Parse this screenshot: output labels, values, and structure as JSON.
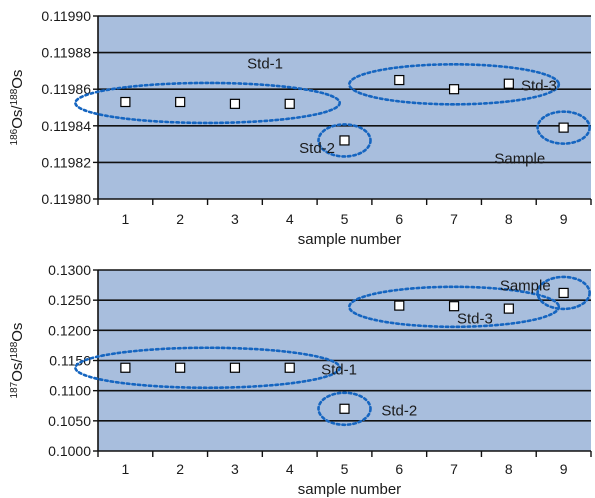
{
  "chart_data": [
    {
      "type": "scatter",
      "title": "",
      "xlabel": "sample number",
      "ylabel_parts": {
        "sup1": "186",
        "base1": "Os/",
        "sup2": "188",
        "base2": "Os"
      },
      "x": [
        1,
        2,
        3,
        4,
        5,
        6,
        7,
        8,
        9
      ],
      "xlim": [
        0.5,
        9.5
      ],
      "ylim": [
        0.1198,
        0.1199
      ],
      "yticks": [
        0.1198,
        0.11982,
        0.11984,
        0.11986,
        0.11988,
        0.1199
      ],
      "ytick_labels": [
        "0.11980",
        "0.11982",
        "0.11984",
        "0.11986",
        "0.11988",
        "0.11990"
      ],
      "xticks": [
        1,
        2,
        3,
        4,
        5,
        6,
        7,
        8,
        9
      ],
      "xtick_labels": [
        "1",
        "2",
        "3",
        "4",
        "5",
        "6",
        "7",
        "8",
        "9"
      ],
      "grid": true,
      "series": [
        {
          "values": [
            0.119853,
            0.119853,
            0.119852,
            0.119852,
            0.119832,
            0.119865,
            0.11986,
            0.119863,
            0.119839
          ],
          "errors": [
            9e-07,
            1.5e-06,
            1.2e-06,
            9e-07,
            2.5e-06,
            1.5e-06,
            1.8e-06,
            1.2e-06,
            1.4e-06
          ]
        }
      ],
      "annotations": [
        {
          "text": "Std-1",
          "x": 3.55,
          "y": 0.119874
        },
        {
          "text": "Std-2",
          "x": 4.5,
          "y": 0.119828
        },
        {
          "text": "Std-3",
          "x": 8.55,
          "y": 0.119862
        },
        {
          "text": "Sample",
          "x": 8.2,
          "y": 0.119822
        }
      ],
      "groups": [
        {
          "label": "Std-1",
          "members": [
            1,
            2,
            3,
            4
          ]
        },
        {
          "label": "Std-2",
          "members": [
            5
          ]
        },
        {
          "label": "Std-3",
          "members": [
            6,
            7,
            8
          ]
        },
        {
          "label": "Sample",
          "members": [
            9
          ]
        }
      ],
      "colors": {
        "background": "#a8bedd",
        "gridline": "#111111",
        "group_ellipse": "#1565c0"
      }
    },
    {
      "type": "scatter",
      "title": "",
      "xlabel": "sample number",
      "ylabel_parts": {
        "sup1": "187",
        "base1": "Os/",
        "sup2": "188",
        "base2": "Os"
      },
      "x": [
        1,
        2,
        3,
        4,
        5,
        6,
        7,
        8,
        9
      ],
      "xlim": [
        0.5,
        9.5
      ],
      "ylim": [
        0.1,
        0.13
      ],
      "yticks": [
        0.1,
        0.105,
        0.11,
        0.115,
        0.12,
        0.125,
        0.13
      ],
      "ytick_labels": [
        "0.1000",
        "0.1050",
        "0.1100",
        "0.1150",
        "0.1200",
        "0.1250",
        "0.1300"
      ],
      "xticks": [
        1,
        2,
        3,
        4,
        5,
        6,
        7,
        8,
        9
      ],
      "xtick_labels": [
        "1",
        "2",
        "3",
        "4",
        "5",
        "6",
        "7",
        "8",
        "9"
      ],
      "grid": true,
      "series": [
        {
          "values": [
            0.1138,
            0.1138,
            0.1138,
            0.1138,
            0.107,
            0.1241,
            0.124,
            0.1236,
            0.1262
          ]
        }
      ],
      "annotations": [
        {
          "text": "Std-1",
          "x": 4.9,
          "y": 0.1135
        },
        {
          "text": "Std-2",
          "x": 6.0,
          "y": 0.1067
        },
        {
          "text": "Std-3",
          "x": 7.38,
          "y": 0.122
        },
        {
          "text": "Sample",
          "x": 8.3,
          "y": 0.1274
        }
      ],
      "groups": [
        {
          "label": "Std-1",
          "members": [
            1,
            2,
            3,
            4
          ]
        },
        {
          "label": "Std-2",
          "members": [
            5
          ]
        },
        {
          "label": "Std-3",
          "members": [
            6,
            7,
            8
          ]
        },
        {
          "label": "Sample",
          "members": [
            9
          ]
        }
      ],
      "colors": {
        "background": "#a8bedd",
        "gridline": "#111111",
        "group_ellipse": "#1565c0"
      }
    }
  ]
}
